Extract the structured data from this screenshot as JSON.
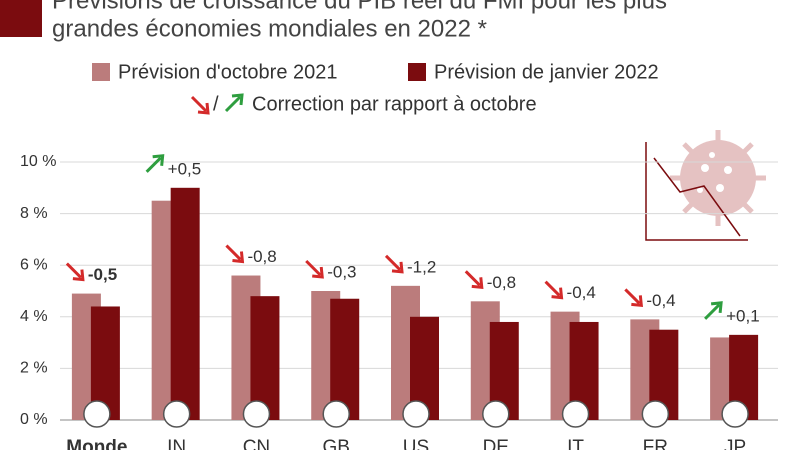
{
  "chart_data": {
    "type": "bar",
    "title": [
      "Prévisions de croissance du PIB réel du FMI pour les plus",
      "grandes économies mondiales en 2022 *"
    ],
    "categories": [
      "Monde",
      "IN",
      "CN",
      "GB",
      "US",
      "DE",
      "IT",
      "FR",
      "JP"
    ],
    "series": [
      {
        "name": "Prévision d'octobre 2021",
        "color": "#bb7c7c",
        "values": [
          4.9,
          8.5,
          5.6,
          5.0,
          5.2,
          4.6,
          4.2,
          3.9,
          3.2
        ]
      },
      {
        "name": "Prévision de janvier 2022",
        "color": "#7b0c0f",
        "values": [
          4.4,
          9.0,
          4.8,
          4.7,
          4.0,
          3.8,
          3.8,
          3.5,
          3.3
        ]
      }
    ],
    "correction_note": "Correction par rapport à octobre",
    "corrections": {
      "values": [
        -0.5,
        0.5,
        -0.8,
        -0.3,
        -1.2,
        -0.8,
        -0.4,
        -0.4,
        0.1
      ],
      "value_labels": [
        "-0,5",
        "+0,5",
        "-0,8",
        "-0,3",
        "-1,2",
        "-0,8",
        "-0,4",
        "-0,4",
        "+0,1"
      ],
      "down_color": "#d42a2a",
      "up_color": "#2e9e3f"
    },
    "ylim": [
      0,
      10
    ],
    "yticks": [
      {
        "value": 0,
        "label": "0 %"
      },
      {
        "value": 2,
        "label": "2 %"
      },
      {
        "value": 4,
        "label": "4 %"
      },
      {
        "value": 6,
        "label": "6 %"
      },
      {
        "value": 8,
        "label": "8 %"
      },
      {
        "value": 10,
        "label": "10 %"
      }
    ],
    "grid": true
  }
}
